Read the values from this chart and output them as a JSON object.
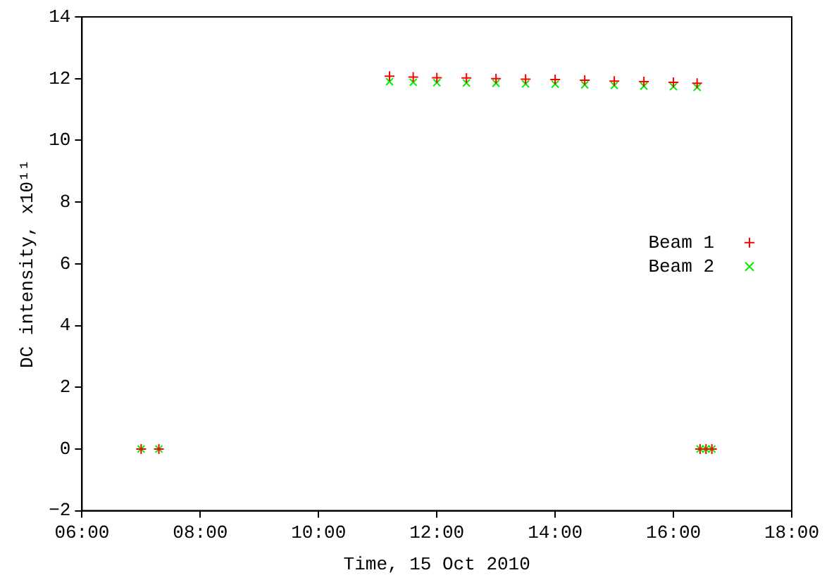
{
  "chart_data": {
    "type": "scatter",
    "xlabel": "Time, 15 Oct 2010",
    "ylabel": "DC intensity, x10¹¹",
    "xlim": [
      6,
      18
    ],
    "xticks": [
      {
        "value": 6,
        "label": "06:00"
      },
      {
        "value": 8,
        "label": "08:00"
      },
      {
        "value": 10,
        "label": "10:00"
      },
      {
        "value": 12,
        "label": "12:00"
      },
      {
        "value": 14,
        "label": "14:00"
      },
      {
        "value": 16,
        "label": "16:00"
      },
      {
        "value": 18,
        "label": "18:00"
      }
    ],
    "ylim": [
      -2,
      14
    ],
    "yticks": [
      -2,
      0,
      2,
      4,
      6,
      8,
      10,
      12,
      14
    ],
    "grid": false,
    "legend": "right",
    "series": [
      {
        "name": "Beam 1",
        "color": "#ff0000",
        "marker": "cross",
        "x": [
          7.0,
          7.3,
          11.2,
          11.6,
          12.0,
          12.5,
          13.0,
          13.5,
          14.0,
          14.5,
          15.0,
          15.5,
          16.0,
          16.4,
          16.45,
          16.55,
          16.65
        ],
        "values": [
          0,
          0,
          12.08,
          12.05,
          12.03,
          12.02,
          12.0,
          11.98,
          11.97,
          11.95,
          11.92,
          11.9,
          11.88,
          11.85,
          0,
          0,
          0
        ]
      },
      {
        "name": "Beam 2",
        "color": "#00ee00",
        "marker": "x",
        "x": [
          7.0,
          7.3,
          11.2,
          11.6,
          12.0,
          12.5,
          13.0,
          13.5,
          14.0,
          14.5,
          15.0,
          15.5,
          16.0,
          16.4,
          16.45,
          16.55,
          16.65
        ],
        "values": [
          0,
          0,
          11.9,
          11.88,
          11.87,
          11.86,
          11.85,
          11.83,
          11.82,
          11.8,
          11.78,
          11.76,
          11.74,
          11.72,
          0,
          0,
          0
        ]
      }
    ]
  }
}
